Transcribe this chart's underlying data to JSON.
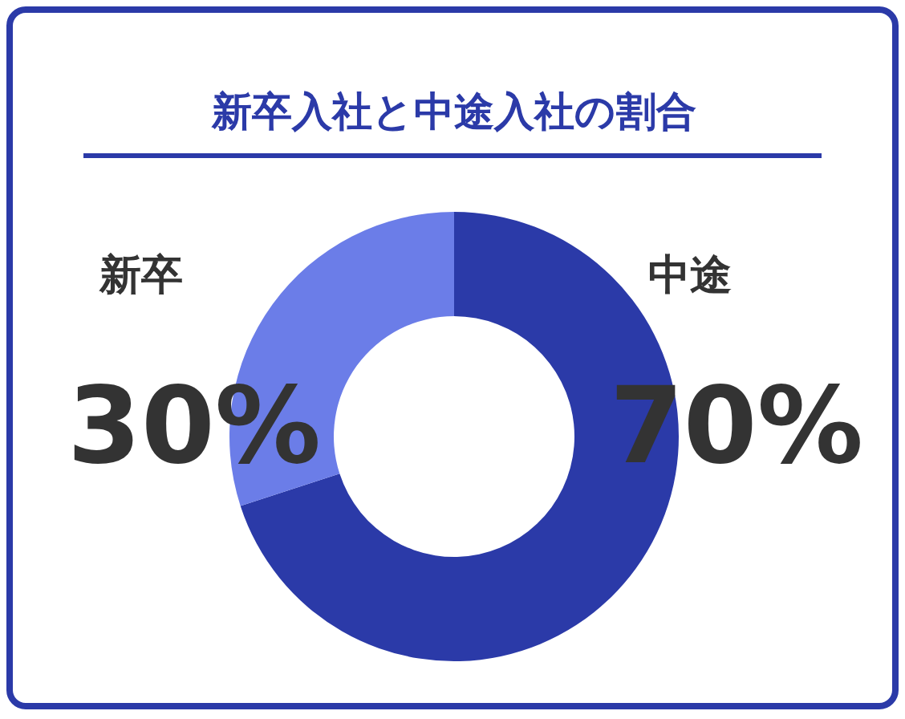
{
  "chart_data": {
    "type": "donut",
    "title": "新卒入社と中途入社の割合",
    "categories": [
      "中途",
      "新卒"
    ],
    "values": [
      70,
      30
    ],
    "colors": [
      "#2b3aa8",
      "#6b7de8"
    ],
    "value_labels": [
      "70%",
      "30%"
    ]
  }
}
